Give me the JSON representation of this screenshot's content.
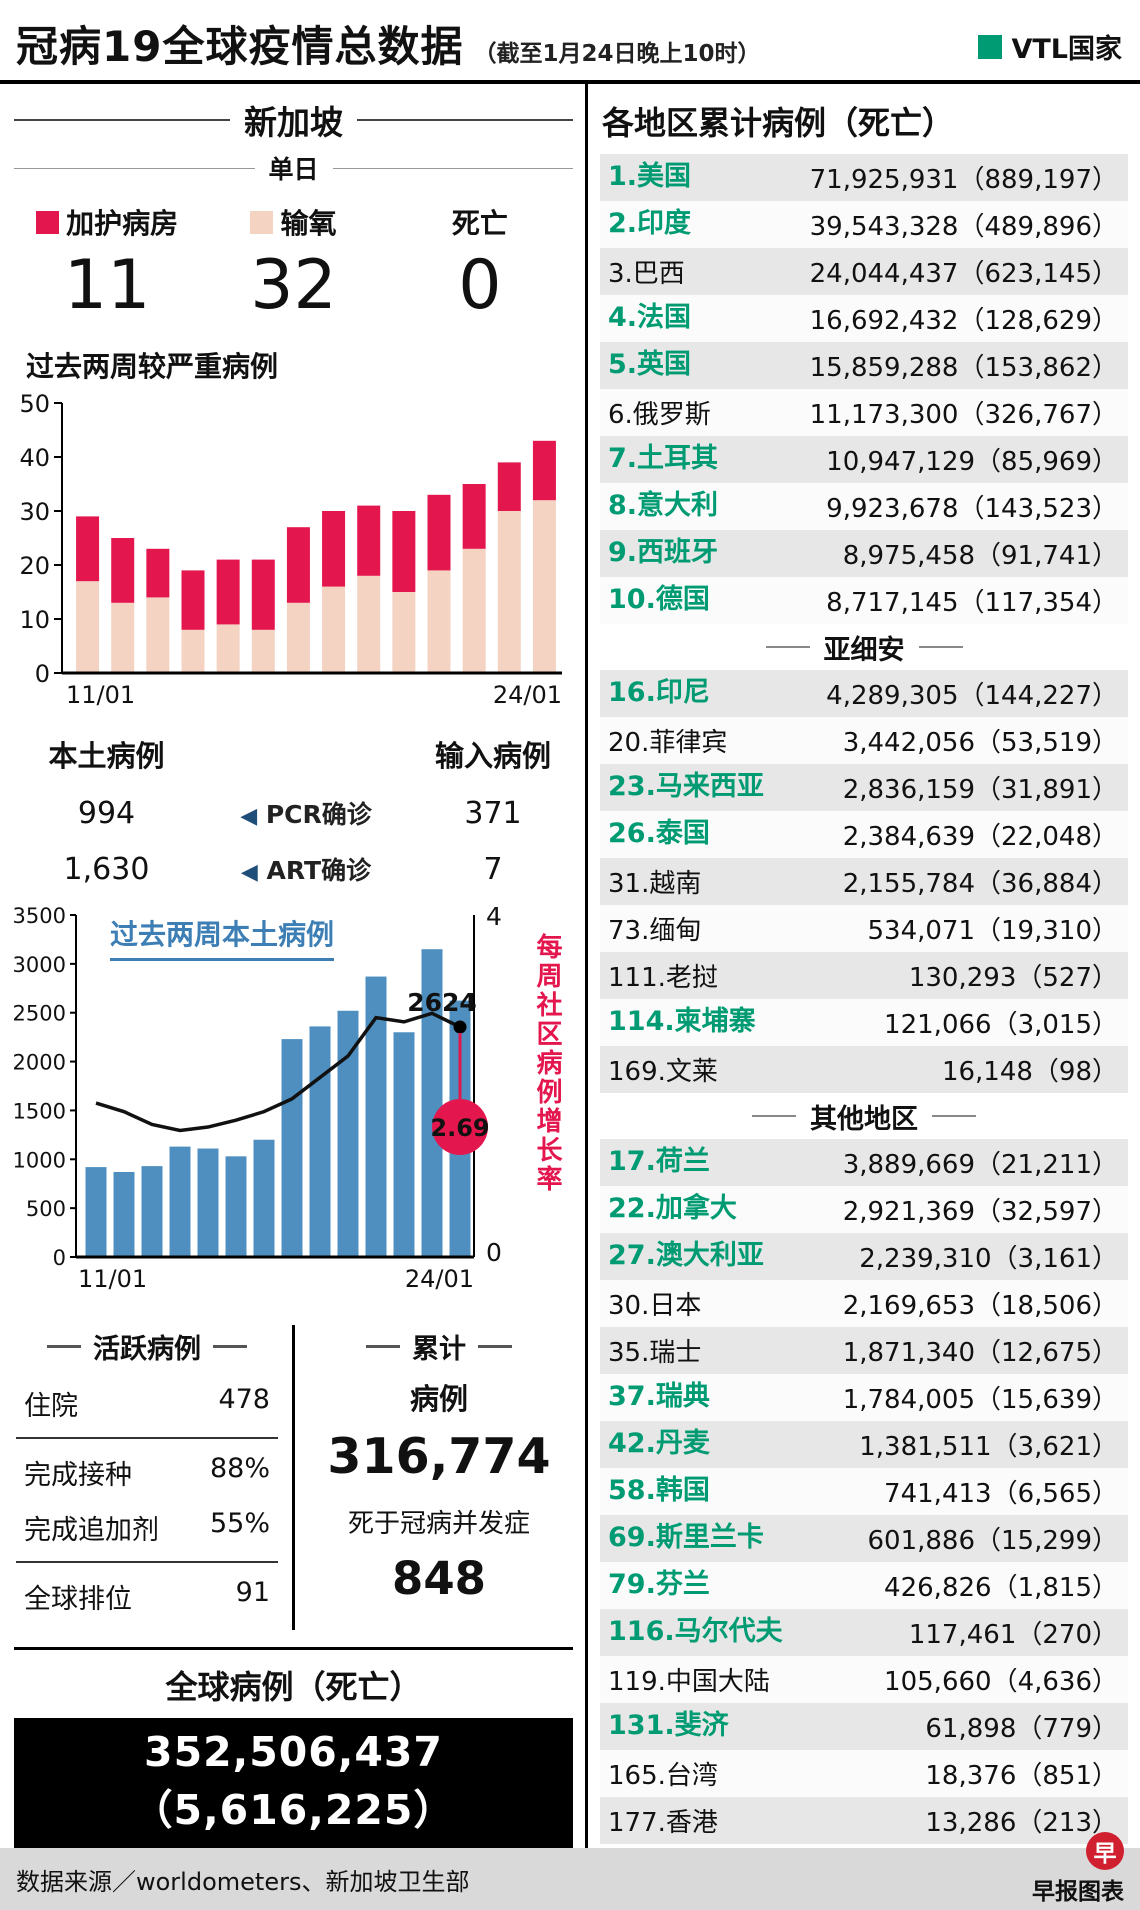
{
  "header": {
    "title": "冠病19全球疫情总数据",
    "subtitle": "（截至1月24日晚上10时）",
    "vtl_legend": "VTL国家",
    "vtl_color": "#009b72"
  },
  "singapore": {
    "title": "新加坡",
    "daily_label": "单日",
    "daily": [
      {
        "label": "加护病房",
        "value": "11",
        "color": "#e4164e"
      },
      {
        "label": "输氧",
        "value": "32",
        "color": "#f4d3c3"
      },
      {
        "label": "死亡",
        "value": "0",
        "color": null
      }
    ]
  },
  "chart_data": [
    {
      "type": "bar",
      "stacked": true,
      "title": "过去两周较严重病例",
      "categories": [
        "11/01",
        "12/01",
        "13/01",
        "14/01",
        "15/01",
        "16/01",
        "17/01",
        "18/01",
        "19/01",
        "20/01",
        "21/01",
        "22/01",
        "23/01",
        "24/01"
      ],
      "series": [
        {
          "name": "输氧",
          "color": "#f4d3c3",
          "values": [
            17,
            13,
            14,
            8,
            9,
            8,
            13,
            16,
            18,
            15,
            19,
            23,
            30,
            32
          ]
        },
        {
          "name": "加护病房",
          "color": "#e4164e",
          "values": [
            12,
            12,
            9,
            11,
            12,
            13,
            14,
            14,
            13,
            15,
            14,
            12,
            9,
            11
          ]
        }
      ],
      "ylim": [
        0,
        50
      ],
      "yticks": [
        0,
        10,
        20,
        30,
        40,
        50
      ],
      "x_end_labels": [
        "11/01",
        "24/01"
      ],
      "grid": false,
      "legend_position": "above"
    },
    {
      "type": "bar+line",
      "title": "过去两周本土病例",
      "categories": [
        "11/01",
        "12/01",
        "13/01",
        "14/01",
        "15/01",
        "16/01",
        "17/01",
        "18/01",
        "19/01",
        "20/01",
        "21/01",
        "22/01",
        "23/01",
        "24/01"
      ],
      "bars": {
        "name": "本土病例",
        "color": "#4e8fbf",
        "values": [
          920,
          870,
          930,
          1130,
          1110,
          1030,
          1200,
          2230,
          2360,
          2520,
          2870,
          2300,
          3150,
          2624
        ]
      },
      "line": {
        "name": "每周社区病例增长率",
        "color": "#111111",
        "values": [
          1.8,
          1.7,
          1.55,
          1.48,
          1.52,
          1.6,
          1.7,
          1.85,
          2.1,
          2.35,
          2.8,
          2.75,
          2.85,
          2.69
        ]
      },
      "left_ylim": [
        0,
        3500
      ],
      "left_yticks": [
        0,
        500,
        1000,
        1500,
        2000,
        2500,
        3000,
        3500
      ],
      "right_ylim": [
        0,
        4
      ],
      "right_yticks": [
        0,
        4
      ],
      "right_axis_label": "每周社区病例增长率",
      "annotation": {
        "last_bar_label": "2624",
        "end_value_label": "2.69",
        "color": "#e4164e"
      },
      "x_end_labels": [
        "11/01",
        "24/01"
      ],
      "grid": false
    }
  ],
  "cases": {
    "local_label": "本土病例",
    "imported_label": "输入病例",
    "pcr_label": "PCR确诊",
    "art_label": "ART确诊",
    "local_pcr": "994",
    "imported_pcr": "371",
    "local_art": "1,630",
    "imported_art": "7"
  },
  "active": {
    "title": "活跃病例",
    "rows": [
      {
        "label": "住院",
        "value": "478"
      },
      {
        "label": "完成接种",
        "value": "88%"
      },
      {
        "label": "完成追加剂",
        "value": "55%"
      },
      {
        "label": "全球排位",
        "value": "91"
      }
    ]
  },
  "cumulative": {
    "title": "累计",
    "cases_label": "病例",
    "cases_value": "316,774",
    "deaths_label": "死于冠病并发症",
    "deaths_value": "848"
  },
  "global": {
    "title": "全球病例（死亡）",
    "value": "352,506,437（5,616,225）"
  },
  "regions": {
    "title": "各地区累计病例（死亡）",
    "sections": [
      {
        "header": null,
        "rows": [
          {
            "rank": "1",
            "name": "美国",
            "cases": "71,925,931",
            "deaths": "889,197",
            "vtl": true
          },
          {
            "rank": "2",
            "name": "印度",
            "cases": "39,543,328",
            "deaths": "489,896",
            "vtl": true
          },
          {
            "rank": "3",
            "name": "巴西",
            "cases": "24,044,437",
            "deaths": "623,145",
            "vtl": false
          },
          {
            "rank": "4",
            "name": "法国",
            "cases": "16,692,432",
            "deaths": "128,629",
            "vtl": true
          },
          {
            "rank": "5",
            "name": "英国",
            "cases": "15,859,288",
            "deaths": "153,862",
            "vtl": true
          },
          {
            "rank": "6",
            "name": "俄罗斯",
            "cases": "11,173,300",
            "deaths": "326,767",
            "vtl": false
          },
          {
            "rank": "7",
            "name": "土耳其",
            "cases": "10,947,129",
            "deaths": "85,969",
            "vtl": true
          },
          {
            "rank": "8",
            "name": "意大利",
            "cases": "9,923,678",
            "deaths": "143,523",
            "vtl": true
          },
          {
            "rank": "9",
            "name": "西班牙",
            "cases": "8,975,458",
            "deaths": "91,741",
            "vtl": true
          },
          {
            "rank": "10",
            "name": "德国",
            "cases": "8,717,145",
            "deaths": "117,354",
            "vtl": true
          }
        ]
      },
      {
        "header": "亚细安",
        "rows": [
          {
            "rank": "16",
            "name": "印尼",
            "cases": "4,289,305",
            "deaths": "144,227",
            "vtl": true
          },
          {
            "rank": "20",
            "name": "菲律宾",
            "cases": "3,442,056",
            "deaths": "53,519",
            "vtl": false
          },
          {
            "rank": "23",
            "name": "马来西亚",
            "cases": "2,836,159",
            "deaths": "31,891",
            "vtl": true
          },
          {
            "rank": "26",
            "name": "泰国",
            "cases": "2,384,639",
            "deaths": "22,048",
            "vtl": true
          },
          {
            "rank": "31",
            "name": "越南",
            "cases": "2,155,784",
            "deaths": "36,884",
            "vtl": false
          },
          {
            "rank": "73",
            "name": "缅甸",
            "cases": "534,071",
            "deaths": "19,310",
            "vtl": false
          },
          {
            "rank": "111",
            "name": "老挝",
            "cases": "130,293",
            "deaths": "527",
            "vtl": false
          },
          {
            "rank": "114",
            "name": "柬埔寨",
            "cases": "121,066",
            "deaths": "3,015",
            "vtl": true
          },
          {
            "rank": "169",
            "name": "文莱",
            "cases": "16,148",
            "deaths": "98",
            "vtl": false
          }
        ]
      },
      {
        "header": "其他地区",
        "rows": [
          {
            "rank": "17",
            "name": "荷兰",
            "cases": "3,889,669",
            "deaths": "21,211",
            "vtl": true
          },
          {
            "rank": "22",
            "name": "加拿大",
            "cases": "2,921,369",
            "deaths": "32,597",
            "vtl": true
          },
          {
            "rank": "27",
            "name": "澳大利亚",
            "cases": "2,239,310",
            "deaths": "3,161",
            "vtl": true
          },
          {
            "rank": "30",
            "name": "日本",
            "cases": "2,169,653",
            "deaths": "18,506",
            "vtl": false
          },
          {
            "rank": "35",
            "name": "瑞士",
            "cases": "1,871,340",
            "deaths": "12,675",
            "vtl": false
          },
          {
            "rank": "37",
            "name": "瑞典",
            "cases": "1,784,005",
            "deaths": "15,639",
            "vtl": true
          },
          {
            "rank": "42",
            "name": "丹麦",
            "cases": "1,381,511",
            "deaths": "3,621",
            "vtl": true
          },
          {
            "rank": "58",
            "name": "韩国",
            "cases": "741,413",
            "deaths": "6,565",
            "vtl": true
          },
          {
            "rank": "69",
            "name": "斯里兰卡",
            "cases": "601,886",
            "deaths": "15,299",
            "vtl": true
          },
          {
            "rank": "79",
            "name": "芬兰",
            "cases": "426,826",
            "deaths": "1,815",
            "vtl": true
          },
          {
            "rank": "116",
            "name": "马尔代夫",
            "cases": "117,461",
            "deaths": "270",
            "vtl": true
          },
          {
            "rank": "119",
            "name": "中国大陆",
            "cases": "105,660",
            "deaths": "4,636",
            "vtl": false
          },
          {
            "rank": "131",
            "name": "斐济",
            "cases": "61,898",
            "deaths": "779",
            "vtl": true
          },
          {
            "rank": "165",
            "name": "台湾",
            "cases": "18,376",
            "deaths": "851",
            "vtl": false
          },
          {
            "rank": "177",
            "name": "香港",
            "cases": "13,286",
            "deaths": "213",
            "vtl": false
          }
        ]
      }
    ]
  },
  "footer": {
    "source": "数据来源／worldometers、新加坡卫生部",
    "credit": "早报图表",
    "logo_text": "早"
  }
}
